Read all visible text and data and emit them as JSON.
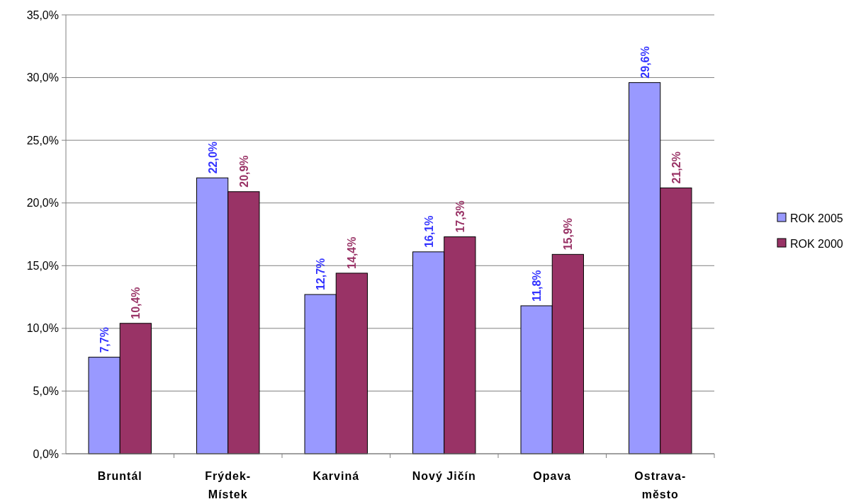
{
  "chart_data": {
    "type": "bar",
    "categories": [
      "Bruntál",
      "Frýdek-Místek",
      "Karviná",
      "Nový Jičín",
      "Opava",
      "Ostrava-město"
    ],
    "series": [
      {
        "name": "ROK 2005",
        "color": "#9999ff",
        "values": [
          7.7,
          22.0,
          12.7,
          16.1,
          11.8,
          29.6
        ],
        "value_labels": [
          "7,7%",
          "22,0%",
          "12,7%",
          "16,1%",
          "11,8%",
          "29,6%"
        ]
      },
      {
        "name": "ROK 2000",
        "color": "#993366",
        "values": [
          10.4,
          20.9,
          14.4,
          17.3,
          15.9,
          21.2
        ],
        "value_labels": [
          "10,4%",
          "20,9%",
          "14,4%",
          "17,3%",
          "15,9%",
          "21,2%"
        ]
      }
    ],
    "ylim": [
      0,
      35
    ],
    "yticks": [
      {
        "value": 0,
        "label": "0,0%"
      },
      {
        "value": 5,
        "label": "5,0%"
      },
      {
        "value": 10,
        "label": "10,0%"
      },
      {
        "value": 15,
        "label": "15,0%"
      },
      {
        "value": 20,
        "label": "20,0%"
      },
      {
        "value": 25,
        "label": "25,0%"
      },
      {
        "value": 30,
        "label": "30,0%"
      },
      {
        "value": 35,
        "label": "35,0%"
      }
    ],
    "grid": "y",
    "legend": "right"
  }
}
